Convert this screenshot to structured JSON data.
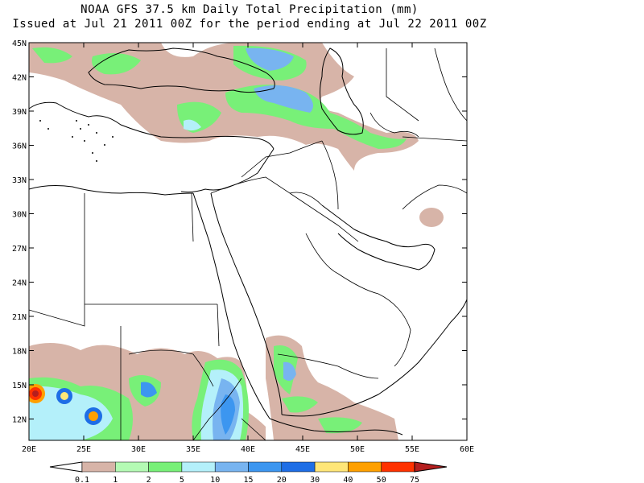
{
  "title_line1": "NOAA GFS 37.5 km Daily Total Precipitation (mm)",
  "title_line2": "Issued at Jul 21 2011 00Z for the period ending at Jul 22 2011 00Z",
  "map": {
    "lon_range": [
      20,
      60
    ],
    "lat_range": [
      10,
      45
    ],
    "lat_ticks": [
      "45N",
      "42N",
      "39N",
      "36N",
      "33N",
      "30N",
      "27N",
      "24N",
      "21N",
      "18N",
      "15N",
      "12N"
    ],
    "lon_ticks": [
      "20E",
      "25E",
      "30E",
      "35E",
      "40E",
      "45E",
      "50E",
      "55E",
      "60E"
    ]
  },
  "colorbar": {
    "labels": [
      "0.1",
      "1",
      "2",
      "5",
      "10",
      "15",
      "20",
      "30",
      "40",
      "50",
      "75"
    ],
    "colors": [
      "#ffffff",
      "#d7b4a8",
      "#b4fab4",
      "#78f078",
      "#b4f0fa",
      "#78b4f0",
      "#3c96f0",
      "#1e6ee6",
      "#ffe678",
      "#ffa000",
      "#ff3200",
      "#b41e1e"
    ]
  }
}
